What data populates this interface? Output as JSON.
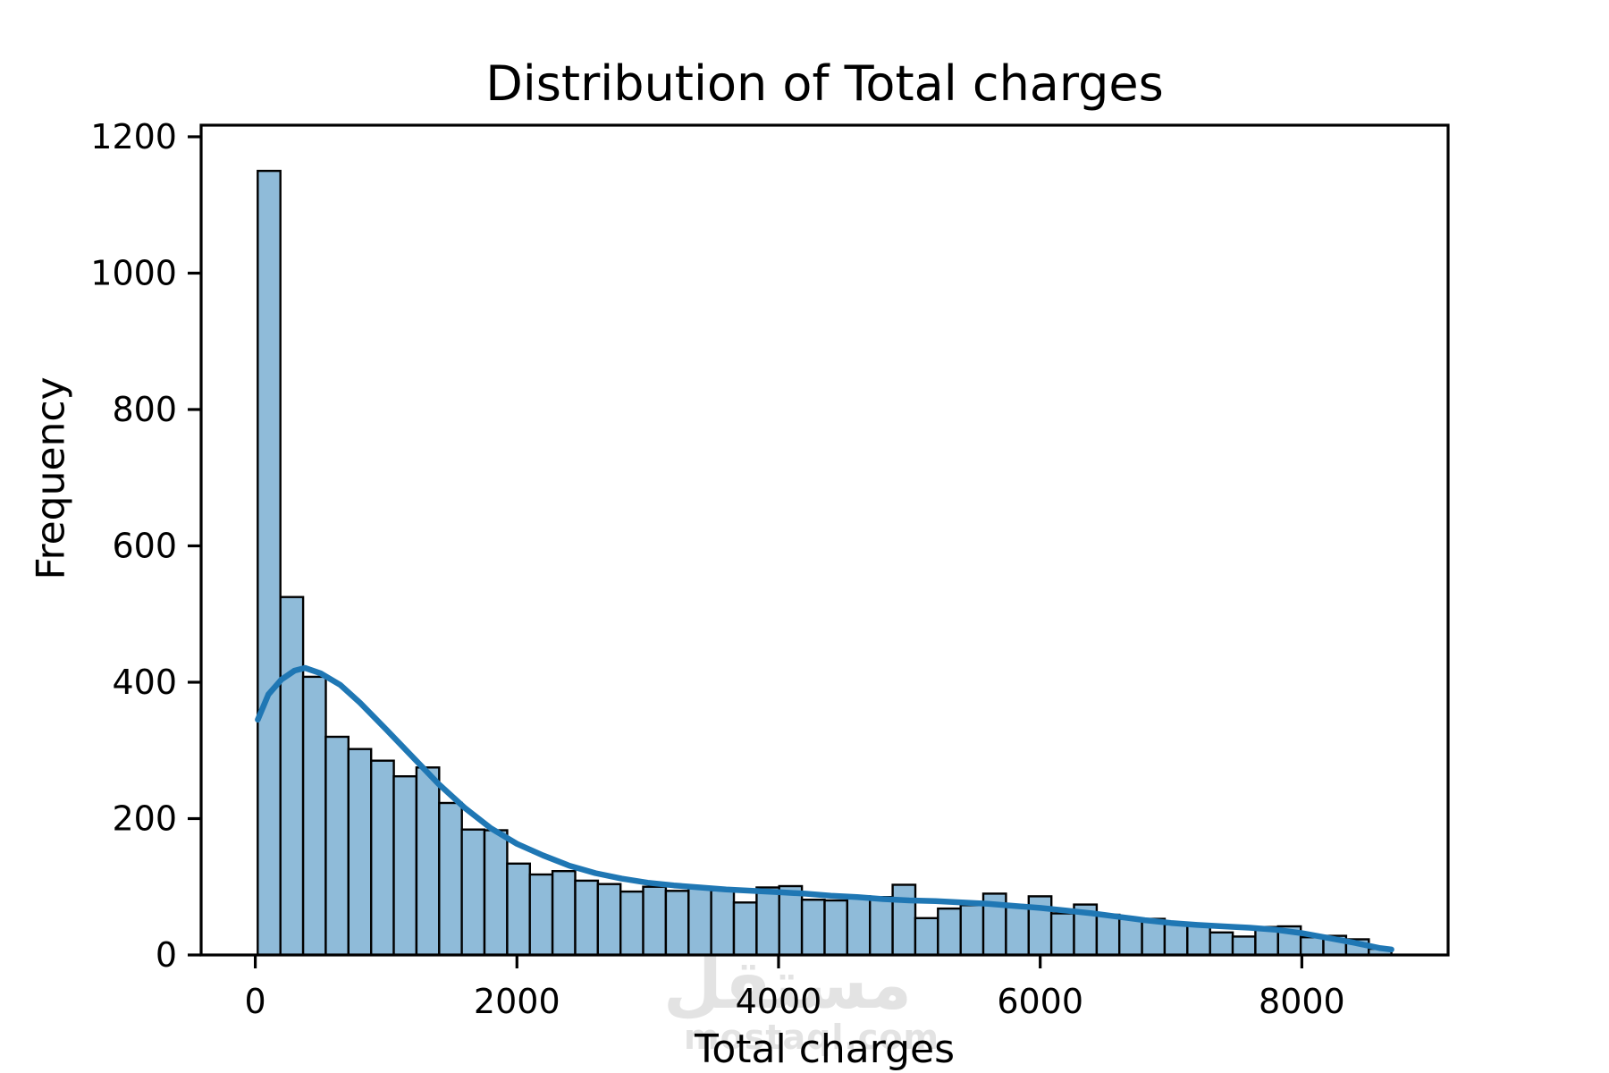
{
  "watermark": {
    "logo_text": "مستقل",
    "site_text": "mostaql.com"
  },
  "chart_data": {
    "type": "bar",
    "subtype": "histogram-with-kde",
    "title": "Distribution of Total charges",
    "xlabel": "Total charges",
    "ylabel": "Frequency",
    "legend": false,
    "grid": false,
    "x_ticks": [
      0,
      2000,
      4000,
      6000,
      8000
    ],
    "y_ticks": [
      0,
      200,
      400,
      600,
      800,
      1000,
      1200
    ],
    "xlim": [
      -414,
      9118
    ],
    "ylim": [
      0,
      1217
    ],
    "bins": {
      "start": 18.8,
      "width": 173.32,
      "count": 50
    },
    "bar_values": [
      1150,
      525,
      408,
      320,
      302,
      285,
      262,
      275,
      223,
      184,
      183,
      134,
      118,
      123,
      109,
      104,
      93,
      100,
      94,
      98,
      95,
      77,
      99,
      101,
      81,
      80,
      86,
      85,
      103,
      54,
      68,
      73,
      90,
      72,
      86,
      61,
      74,
      59,
      53,
      53,
      45,
      45,
      33,
      27,
      41,
      42,
      26,
      28,
      23,
      9
    ],
    "kde_points": [
      [
        19,
        345
      ],
      [
        100,
        382
      ],
      [
        200,
        404
      ],
      [
        300,
        417
      ],
      [
        380,
        421
      ],
      [
        500,
        413
      ],
      [
        650,
        396
      ],
      [
        800,
        370
      ],
      [
        1000,
        331
      ],
      [
        1200,
        291
      ],
      [
        1400,
        251
      ],
      [
        1600,
        216
      ],
      [
        1800,
        186
      ],
      [
        2000,
        163
      ],
      [
        2200,
        146
      ],
      [
        2400,
        131
      ],
      [
        2600,
        120
      ],
      [
        2800,
        112
      ],
      [
        3000,
        106
      ],
      [
        3200,
        102
      ],
      [
        3400,
        99
      ],
      [
        3600,
        96
      ],
      [
        3800,
        94
      ],
      [
        4000,
        92
      ],
      [
        4200,
        90
      ],
      [
        4400,
        87
      ],
      [
        4600,
        85
      ],
      [
        4800,
        82
      ],
      [
        5000,
        80
      ],
      [
        5200,
        79
      ],
      [
        5400,
        77
      ],
      [
        5600,
        75
      ],
      [
        5800,
        72
      ],
      [
        6000,
        69
      ],
      [
        6200,
        65
      ],
      [
        6400,
        61
      ],
      [
        6600,
        56
      ],
      [
        6800,
        51
      ],
      [
        7000,
        47
      ],
      [
        7200,
        44
      ],
      [
        7400,
        42
      ],
      [
        7600,
        40
      ],
      [
        7800,
        37
      ],
      [
        8000,
        32
      ],
      [
        8200,
        25
      ],
      [
        8400,
        18
      ],
      [
        8600,
        10
      ],
      [
        8685,
        8
      ]
    ],
    "colors": {
      "bar_fill": "#8fbbd9",
      "bar_edge": "#000000",
      "kde_line": "#1f77b4",
      "axis": "#000000",
      "text": "#000000",
      "watermark": "#e3e3e3"
    }
  }
}
